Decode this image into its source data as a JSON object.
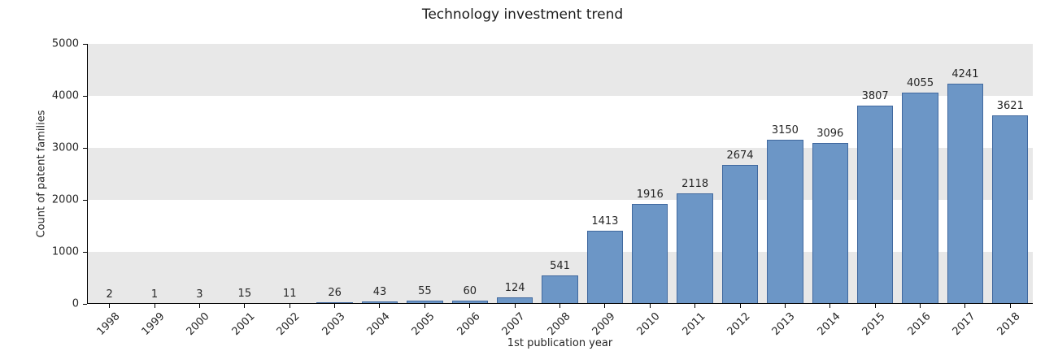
{
  "chart_data": {
    "type": "bar",
    "title": "Technology investment trend",
    "xlabel": "1st publication year",
    "ylabel": "Count of patent families",
    "categories": [
      "1998",
      "1999",
      "2000",
      "2001",
      "2002",
      "2003",
      "2004",
      "2005",
      "2006",
      "2007",
      "2008",
      "2009",
      "2010",
      "2011",
      "2012",
      "2013",
      "2014",
      "2015",
      "2016",
      "2017",
      "2018"
    ],
    "values": [
      2,
      1,
      3,
      15,
      11,
      26,
      43,
      55,
      60,
      124,
      541,
      1413,
      1916,
      2118,
      2674,
      3150,
      3096,
      3807,
      4055,
      4241,
      3621
    ],
    "ylim": [
      0,
      5000
    ],
    "yticks": [
      0,
      1000,
      2000,
      3000,
      4000,
      5000
    ],
    "grid": "horizontal-bands",
    "legend": "none",
    "value_labels": true,
    "x_tick_rotation": 45,
    "colors": {
      "bar_fill": "#6c96c6",
      "bar_border": "#41699f",
      "band_even": "#e8e8e8",
      "band_odd": "#ffffff",
      "axis": "#000000",
      "text": "#262626"
    }
  }
}
